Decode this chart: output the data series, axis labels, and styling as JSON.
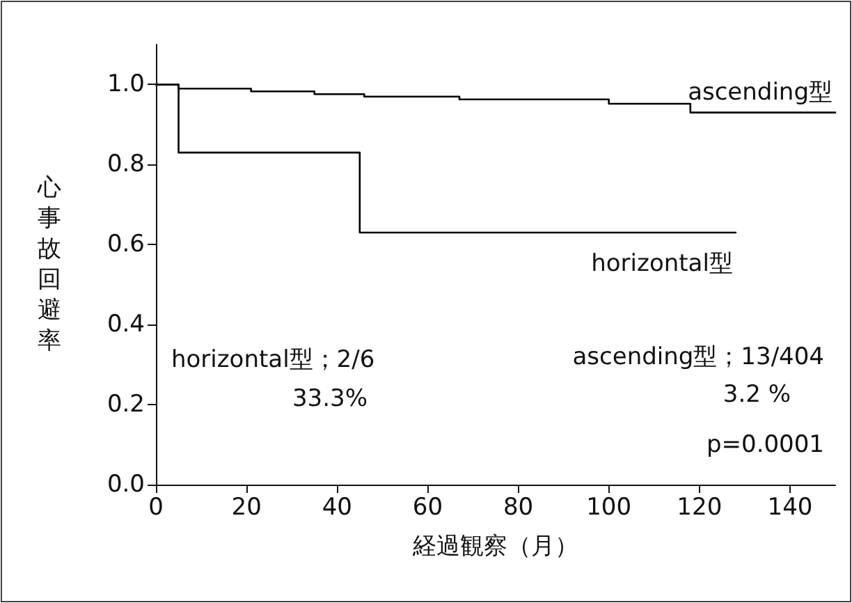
{
  "chart_data": {
    "type": "step",
    "xlabel": "経過観察（月）",
    "ylabel": "心事故回避率",
    "xlim": [
      0,
      150
    ],
    "xticks": [
      0,
      20,
      40,
      60,
      80,
      100,
      120,
      140
    ],
    "ylim": [
      0,
      1.1
    ],
    "yticks": [
      {
        "value": 0,
        "label": "0.0"
      },
      {
        "value": 0.2,
        "label": "0.2"
      },
      {
        "value": 0.4,
        "label": "0.4"
      },
      {
        "value": 0.6,
        "label": "0.6"
      },
      {
        "value": 0.8,
        "label": "0.8"
      },
      {
        "value": 1,
        "label": "1.0"
      }
    ],
    "series": [
      {
        "name": "ascending型",
        "color": "#000000",
        "x": [
          0,
          5,
          21,
          35,
          46,
          67,
          100,
          118,
          150
        ],
        "values": [
          1,
          0.99,
          0.983,
          0.976,
          0.97,
          0.963,
          0.952,
          0.93,
          0.93
        ]
      },
      {
        "name": "horizontal型",
        "color": "#000000",
        "x": [
          0,
          5,
          45,
          128
        ],
        "values": [
          1,
          0.83,
          0.63,
          0.63
        ]
      }
    ],
    "annotations": [
      "horizontal型；2/6",
      "33.3%",
      "ascending型；13/404",
      "3.2 %",
      "p=0.0001"
    ],
    "grid": false,
    "legend": false,
    "marker": "none",
    "line_style": "solid"
  }
}
